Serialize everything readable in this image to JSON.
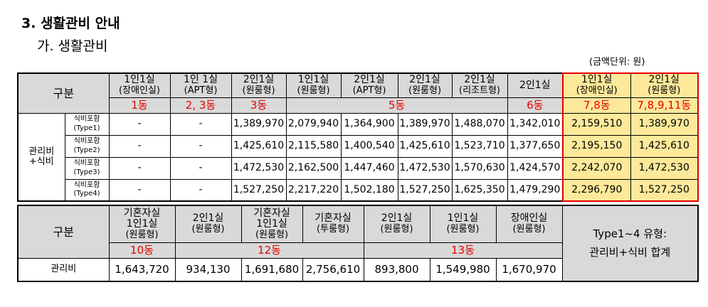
{
  "section": {
    "heading": "3. 생활관비 안내",
    "subheading": "가. 생활관비",
    "unit_note": "(금액단위: 원)"
  },
  "table1": {
    "category_label": "구분",
    "columns": [
      {
        "line1": "1인1실",
        "line2": "(장애인실)"
      },
      {
        "line1": "1인 1실",
        "line2": "(APT형)"
      },
      {
        "line1": "2인1실",
        "line2": "(원룸형)"
      },
      {
        "line1": "1인1실",
        "line2": "(원룸형)"
      },
      {
        "line1": "2인1실",
        "line2": "(APT형)"
      },
      {
        "line1": "2인1실",
        "line2": "(원룸형)"
      },
      {
        "line1": "2인1실",
        "line2": "(리조트형)"
      },
      {
        "line1": "2인1실",
        "line2": ""
      },
      {
        "line1": "1인1실",
        "line2": "(장애인실)"
      },
      {
        "line1": "2인1실",
        "line2": "(원룸형)"
      }
    ],
    "buildings": [
      "1동",
      "2, 3동",
      "3동",
      "5동",
      "6동",
      "7,8동",
      "7,8,9,11동"
    ],
    "group_label": "관리비\n+식비",
    "rows": [
      {
        "type_line1": "식비포함",
        "type_line2": "(Type1)",
        "values": [
          "-",
          "-",
          "1,389,970",
          "2,079,940",
          "1,364,900",
          "1,389,970",
          "1,488,070",
          "1,342,010",
          "2,159,510",
          "1,389,970"
        ]
      },
      {
        "type_line1": "식비포함",
        "type_line2": "(Type2)",
        "values": [
          "-",
          "-",
          "1,425,610",
          "2,115,580",
          "1,400,540",
          "1,425,610",
          "1,523,710",
          "1,377,650",
          "2,195,150",
          "1,425,610"
        ]
      },
      {
        "type_line1": "식비포함",
        "type_line2": "(Type3)",
        "values": [
          "-",
          "-",
          "1,472,530",
          "2,162,500",
          "1,447,460",
          "1,472,530",
          "1,570,630",
          "1,424,570",
          "2,242,070",
          "1,472,530"
        ]
      },
      {
        "type_line1": "식비포함",
        "type_line2": "(Type4)",
        "values": [
          "-",
          "-",
          "1,527,250",
          "2,217,220",
          "1,502,180",
          "1,527,250",
          "1,625,350",
          "1,479,290",
          "2,296,790",
          "1,527,250"
        ]
      }
    ],
    "highlight_color": "#fde99a",
    "accent_color": "#e30000"
  },
  "table2": {
    "category_label": "구분",
    "columns": [
      {
        "lines": [
          "기혼자실",
          "1인1실",
          "(원룸형)"
        ]
      },
      {
        "lines": [
          "2인1실",
          "(원룸형)"
        ]
      },
      {
        "lines": [
          "기혼자실",
          "1인1실",
          "(원룸형)"
        ]
      },
      {
        "lines": [
          "기혼자실",
          "(투룸형)"
        ]
      },
      {
        "lines": [
          "2인1실",
          "(원룸형)"
        ]
      },
      {
        "lines": [
          "1인1실",
          "(원룸형)"
        ]
      },
      {
        "lines": [
          "장애인실",
          "(원룸형)"
        ]
      }
    ],
    "buildings": [
      "10동",
      "12동",
      "13동"
    ],
    "note_line1": "Type1~4 유형:",
    "note_line2": "관리비+식비 합계",
    "row_label": "관리비",
    "values": [
      "1,643,720",
      "934,130",
      "1,691,680",
      "2,756,610",
      "893,800",
      "1,549,980",
      "1,670,970"
    ]
  }
}
